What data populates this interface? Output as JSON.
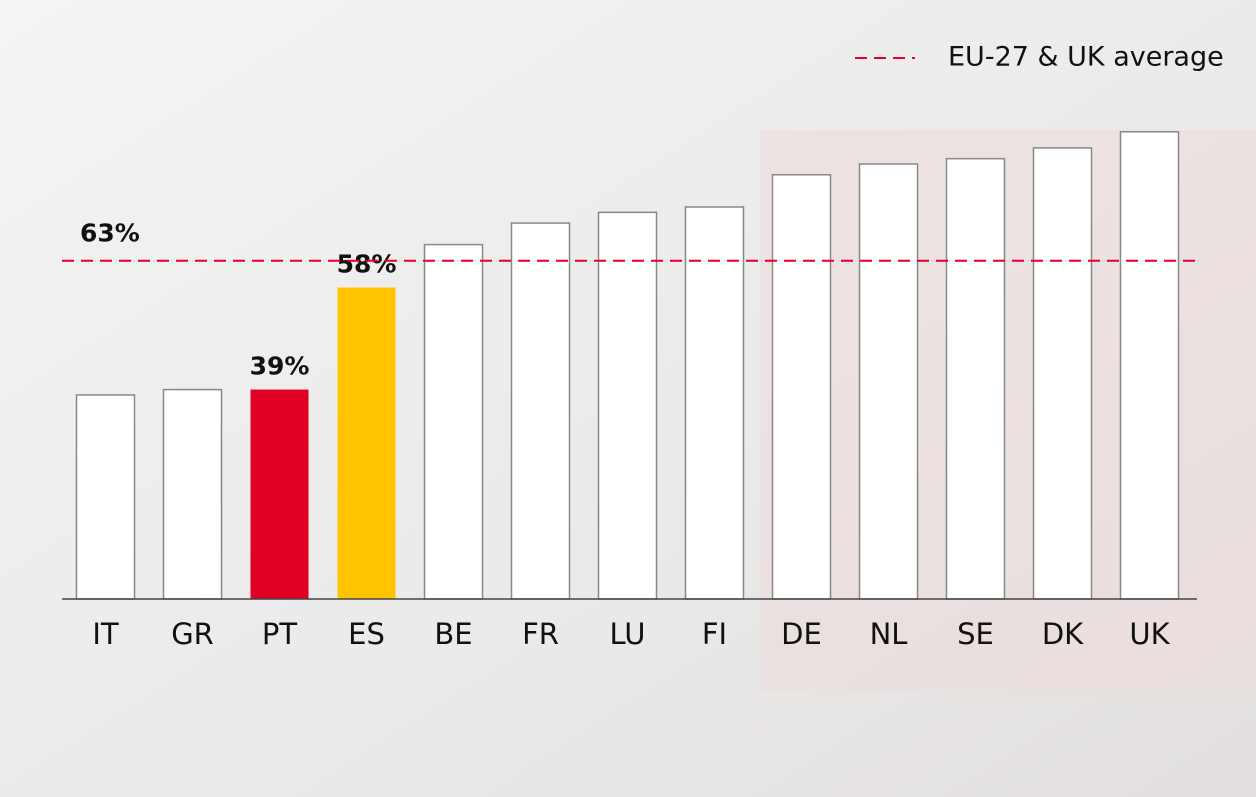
{
  "chart_data": {
    "type": "bar",
    "categories": [
      "IT",
      "GR",
      "PT",
      "ES",
      "BE",
      "FR",
      "LU",
      "FI",
      "DE",
      "NL",
      "SE",
      "DK",
      "UK"
    ],
    "values": [
      38,
      39,
      39,
      58,
      66,
      70,
      72,
      73,
      79,
      81,
      82,
      84,
      87
    ],
    "value_labels": [
      null,
      null,
      "39%",
      "58%",
      null,
      null,
      null,
      null,
      null,
      null,
      null,
      null,
      null
    ],
    "colors": [
      "#ffffff",
      "#ffffff",
      "#e10024",
      "#ffc300",
      "#ffffff",
      "#ffffff",
      "#ffffff",
      "#ffffff",
      "#ffffff",
      "#ffffff",
      "#ffffff",
      "#ffffff",
      "#ffffff"
    ],
    "ylim": [
      0,
      100
    ],
    "average": {
      "name": "EU-27 & UK average",
      "value": 63,
      "label": "63%",
      "color": "#e4002b"
    }
  }
}
